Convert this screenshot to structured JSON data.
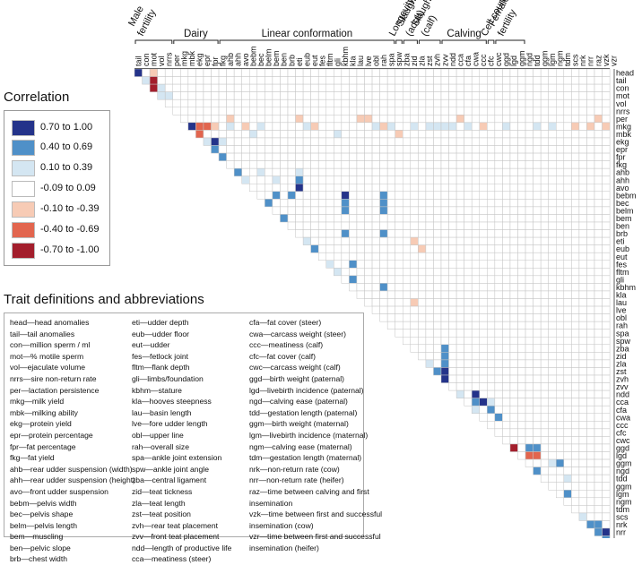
{
  "titles": {
    "correlation": "Correlation",
    "definitions": "Trait definitions and abbreviations"
  },
  "legend": [
    {
      "label": "0.70 to 1.00",
      "color": "#24338a"
    },
    {
      "label": "0.40 to 0.69",
      "color": "#4f90c8"
    },
    {
      "label": "0.10 to 0.39",
      "color": "#d4e6f2"
    },
    {
      "label": "-0.09 to 0.09",
      "color": "#ffffff"
    },
    {
      "label": "-0.10 to -0.39",
      "color": "#f7cbb5"
    },
    {
      "label": "-0.40 to -0.69",
      "color": "#e2654e"
    },
    {
      "label": "-0.70 to -1.00",
      "color": "#a31e2c"
    }
  ],
  "groups": [
    {
      "label": "Male fertility",
      "lines": [
        "Male",
        "fertility"
      ],
      "start": 1,
      "end": 5
    },
    {
      "label": "Dairy",
      "lines": [
        "Dairy"
      ],
      "start": 6,
      "end": 11
    },
    {
      "label": "Linear conformation",
      "lines": [
        "Linear conformation"
      ],
      "start": 12,
      "end": 34
    },
    {
      "label": "Longevity",
      "lines": [
        "Longevity"
      ],
      "start": 35,
      "end": 35
    },
    {
      "label": "Slaughter (adult)",
      "lines": [
        "Slaughter",
        "(adult)"
      ],
      "start": 36,
      "end": 37
    },
    {
      "label": "Slaughter (calf)",
      "lines": [
        "Slaughter",
        "(calf)"
      ],
      "start": 38,
      "end": 40
    },
    {
      "label": "Calving",
      "lines": [
        "Calving"
      ],
      "start": 41,
      "end": 46
    },
    {
      "label": "Cell count",
      "lines": [
        "Cell count"
      ],
      "start": 47,
      "end": 47
    },
    {
      "label": "Female fertility",
      "lines": [
        "Female",
        "fertility"
      ],
      "start": 48,
      "end": 51
    }
  ],
  "traits": [
    "head",
    "tail",
    "con",
    "mot",
    "vol",
    "nrrs",
    "per",
    "mkg",
    "mbk",
    "ekg",
    "epr",
    "fpr",
    "fkg",
    "ahb",
    "ahh",
    "avo",
    "bebm",
    "bec",
    "belm",
    "bem",
    "ben",
    "brb",
    "eti",
    "eub",
    "eut",
    "fes",
    "fltm",
    "gli",
    "kbhm",
    "kla",
    "lau",
    "lve",
    "obl",
    "rah",
    "spa",
    "spw",
    "zba",
    "zid",
    "zla",
    "zst",
    "zvh",
    "zvv",
    "ndd",
    "cca",
    "cfa",
    "cwa",
    "ccc",
    "cfc",
    "cwc",
    "ggd",
    "lgd",
    "ggm",
    "ngd",
    "tdd",
    "ggm",
    "lgm",
    "ngm",
    "tdm",
    "scs",
    "nrk",
    "nrr",
    "raz",
    "vzk"
  ],
  "chart_data": {
    "type": "heatmap",
    "title": "Correlation",
    "layout": "lower-triangle",
    "value_scale": [
      -1,
      1
    ],
    "categories": [
      "head",
      "tail",
      "con",
      "mot",
      "vol",
      "nrrs",
      "per",
      "mkg",
      "mbk",
      "ekg",
      "epr",
      "fpr",
      "fkg",
      "ahb",
      "ahh",
      "avo",
      "bebm",
      "bec",
      "belm",
      "bem",
      "ben",
      "brb",
      "eti",
      "eub",
      "eut",
      "fes",
      "fltm",
      "gli",
      "kbhm",
      "kla",
      "lau",
      "lve",
      "obl",
      "rah",
      "spa",
      "spw",
      "zba",
      "zid",
      "zla",
      "zst",
      "zvh",
      "zvv",
      "ndd",
      "cca",
      "cfa",
      "cwa",
      "ccc",
      "cfc",
      "cwc",
      "ggd",
      "lgd",
      "ggm",
      "ngd",
      "tdd",
      "ggm",
      "lgm",
      "ngm",
      "tdm",
      "scs",
      "nrk",
      "nrr",
      "raz",
      "vzk"
    ],
    "cells": [
      {
        "row": "head",
        "col": "tail",
        "value": 0.8
      },
      {
        "row": "tail",
        "col": "mot",
        "value": -0.8
      },
      {
        "row": "con",
        "col": "mot",
        "value": -0.8
      },
      {
        "row": "head",
        "col": "mot",
        "value": -0.2
      },
      {
        "row": "tail",
        "col": "con",
        "value": 0.2
      },
      {
        "row": "con",
        "col": "vol",
        "value": 0.2
      },
      {
        "row": "mot",
        "col": "vol",
        "value": 0.2
      },
      {
        "row": "mot",
        "col": "nrrs",
        "value": 0.2
      },
      {
        "row": "mkg",
        "col": "mbk",
        "value": 0.8
      },
      {
        "row": "mkg",
        "col": "ekg",
        "value": -0.5
      },
      {
        "row": "mkg",
        "col": "epr",
        "value": -0.5
      },
      {
        "row": "mkg",
        "col": "fpr",
        "value": -0.2
      },
      {
        "row": "mbk",
        "col": "ekg",
        "value": -0.5
      },
      {
        "row": "ekg",
        "col": "epr",
        "value": 0.2
      },
      {
        "row": "ekg",
        "col": "fpr",
        "value": 0.8
      },
      {
        "row": "epr",
        "col": "fpr",
        "value": 0.5
      },
      {
        "row": "fpr",
        "col": "fkg",
        "value": 0.5
      },
      {
        "row": "ekg",
        "col": "fkg",
        "value": 0.2
      },
      {
        "row": "per",
        "col": "ahb",
        "value": -0.2
      },
      {
        "row": "mkg",
        "col": "ahb",
        "value": 0.2
      },
      {
        "row": "mkg",
        "col": "avo",
        "value": -0.2
      },
      {
        "row": "mbk",
        "col": "bebm",
        "value": 0.2
      },
      {
        "row": "mkg",
        "col": "bec",
        "value": 0.2
      },
      {
        "row": "per",
        "col": "eti",
        "value": -0.2
      },
      {
        "row": "mkg",
        "col": "eub",
        "value": 0.2
      },
      {
        "row": "mkg",
        "col": "eut",
        "value": -0.2
      },
      {
        "row": "mbk",
        "col": "gli",
        "value": 0.2
      },
      {
        "row": "per",
        "col": "lau",
        "value": -0.2
      },
      {
        "row": "per",
        "col": "lve",
        "value": -0.2
      },
      {
        "row": "mkg",
        "col": "obl",
        "value": 0.2
      },
      {
        "row": "mkg",
        "col": "rah",
        "value": -0.2
      },
      {
        "row": "mkg",
        "col": "spa",
        "value": 0.2
      },
      {
        "row": "mbk",
        "col": "spw",
        "value": -0.2
      },
      {
        "row": "mkg",
        "col": "zid",
        "value": 0.2
      },
      {
        "row": "mkg",
        "col": "zst",
        "value": 0.2
      },
      {
        "row": "mkg",
        "col": "zvh",
        "value": 0.2
      },
      {
        "row": "mkg",
        "col": "zvv",
        "value": 0.2
      },
      {
        "row": "mkg",
        "col": "ndd",
        "value": 0.2
      },
      {
        "row": "per",
        "col": "cca",
        "value": -0.2
      },
      {
        "row": "mkg",
        "col": "cfa",
        "value": 0.2
      },
      {
        "row": "mkg",
        "col": "ccc",
        "value": -0.2
      },
      {
        "row": "mkg",
        "col": "ggd",
        "value": 0.2
      },
      {
        "row": "mkg",
        "col": "tdd",
        "value": 0.2
      },
      {
        "row": "mkg",
        "col": "lgm",
        "value": 0.2
      },
      {
        "row": "mkg",
        "col": "scs",
        "value": -0.2
      },
      {
        "row": "mkg",
        "col": "nrr",
        "value": -0.2
      },
      {
        "row": "per",
        "col": "raz",
        "value": -0.2
      },
      {
        "row": "mkg",
        "col": "vzk",
        "value": -0.2
      },
      {
        "row": "ahb",
        "col": "ahh",
        "value": 0.5
      },
      {
        "row": "ahh",
        "col": "avo",
        "value": 0.2
      },
      {
        "row": "ahb",
        "col": "bec",
        "value": 0.2
      },
      {
        "row": "bebm",
        "col": "bem",
        "value": 0.5
      },
      {
        "row": "ahh",
        "col": "bem",
        "value": 0.2
      },
      {
        "row": "bec",
        "col": "belm",
        "value": 0.5
      },
      {
        "row": "bem",
        "col": "ben",
        "value": 0.5
      },
      {
        "row": "bebm",
        "col": "brb",
        "value": 0.5
      },
      {
        "row": "ahb",
        "col": "eti",
        "value": 0.2
      },
      {
        "row": "avo",
        "col": "eti",
        "value": 0.8
      },
      {
        "row": "ahh",
        "col": "eti",
        "value": 0.5
      },
      {
        "row": "eti",
        "col": "eub",
        "value": 0.2
      },
      {
        "row": "eub",
        "col": "eut",
        "value": 0.5
      },
      {
        "row": "bebm",
        "col": "kbhm",
        "value": 0.8
      },
      {
        "row": "belm",
        "col": "kbhm",
        "value": 0.5
      },
      {
        "row": "bec",
        "col": "kbhm",
        "value": 0.5
      },
      {
        "row": "brb",
        "col": "kbhm",
        "value": 0.5
      },
      {
        "row": "fes",
        "col": "fltm",
        "value": 0.2
      },
      {
        "row": "fltm",
        "col": "gli",
        "value": 0.2
      },
      {
        "row": "gli",
        "col": "kla",
        "value": 0.5
      },
      {
        "row": "fes",
        "col": "kla",
        "value": 0.5
      },
      {
        "row": "bebm",
        "col": "rah",
        "value": 0.5
      },
      {
        "row": "bec",
        "col": "rah",
        "value": 0.5
      },
      {
        "row": "belm",
        "col": "rah",
        "value": 0.5
      },
      {
        "row": "kbhm",
        "col": "rah",
        "value": 0.5
      },
      {
        "row": "brb",
        "col": "rah",
        "value": 0.5
      },
      {
        "row": "lau",
        "col": "zid",
        "value": -0.2
      },
      {
        "row": "eti",
        "col": "zid",
        "value": -0.2
      },
      {
        "row": "eub",
        "col": "zla",
        "value": -0.2
      },
      {
        "row": "zba",
        "col": "zvv",
        "value": 0.5
      },
      {
        "row": "zid",
        "col": "zvv",
        "value": 0.5
      },
      {
        "row": "zst",
        "col": "zvv",
        "value": 0.8
      },
      {
        "row": "zvh",
        "col": "zvv",
        "value": 0.8
      },
      {
        "row": "zla",
        "col": "zvv",
        "value": 0.5
      },
      {
        "row": "zst",
        "col": "zvh",
        "value": 0.5
      },
      {
        "row": "zla",
        "col": "zst",
        "value": 0.2
      },
      {
        "row": "ndd",
        "col": "cca",
        "value": 0.2
      },
      {
        "row": "ndd",
        "col": "cwa",
        "value": 0.8
      },
      {
        "row": "cca",
        "col": "cwa",
        "value": 0.5
      },
      {
        "row": "cfa",
        "col": "cwa",
        "value": 0.2
      },
      {
        "row": "cca",
        "col": "ccc",
        "value": 0.8
      },
      {
        "row": "cfa",
        "col": "cfc",
        "value": 0.5
      },
      {
        "row": "cwa",
        "col": "cwc",
        "value": 0.5
      },
      {
        "row": "cca",
        "col": "cfc",
        "value": 0.2
      },
      {
        "row": "ggd",
        "col": "lgd",
        "value": -0.8
      },
      {
        "row": "ggd",
        "col": "ngd",
        "value": 0.5
      },
      {
        "row": "ggd",
        "col": "tdd",
        "value": 0.5
      },
      {
        "row": "lgd",
        "col": "ngd",
        "value": -0.5
      },
      {
        "row": "lgd",
        "col": "tdd",
        "value": -0.5
      },
      {
        "row": "ngd",
        "col": "tdd",
        "value": 0.5
      },
      {
        "row": "ggm",
        "col": "lgm",
        "value": 0.2
      },
      {
        "row": "ggm",
        "col": "ngm",
        "value": 0.5
      },
      {
        "row": "lgm",
        "col": "tdm",
        "value": 0.5
      },
      {
        "row": "tdd",
        "col": "tdm",
        "value": 0.2
      },
      {
        "row": "nrk",
        "col": "nrr",
        "value": 0.5
      },
      {
        "row": "nrk",
        "col": "raz",
        "value": 0.5
      },
      {
        "row": "nrr",
        "col": "raz",
        "value": 0.5
      },
      {
        "row": "nrr",
        "col": "vzk",
        "value": 0.8
      },
      {
        "row": "raz",
        "col": "vzk",
        "value": 0.5
      },
      {
        "row": "scs",
        "col": "nrk",
        "value": 0.2
      }
    ]
  },
  "definitions": {
    "col1": [
      "head—head anomalies",
      "tail—tail anomalies",
      "con—million sperm / ml",
      "mot—% motile sperm",
      "vol—ejaculate volume",
      "nrrs—sire non-return rate",
      "per—lactation persistence",
      "mkg—milk yield",
      "mbk—milking ability",
      "ekg—protein yield",
      "epr—protein percentage",
      "fpr—fat percentage",
      "fkg—fat yield",
      "ahb—rear udder suspension (width)",
      "ahh—rear udder suspension (height)",
      "avo—front udder suspension",
      "bebm—pelvis width",
      "bec—pelvis shape",
      "belm—pelvis length",
      "bem—muscling",
      "ben—pelvic slope",
      "brb—chest width"
    ],
    "col2": [
      "eti—udder depth",
      "eub—udder floor",
      "eut—udder",
      "fes—fetlock joint",
      "fltm—flank depth",
      "gli—limbs/foundation",
      "kbhm—stature",
      "kla—hooves steepness",
      "lau—basin length",
      "lve—fore udder length",
      "obl—upper line",
      "rah—overall size",
      "spa—ankle joint extension",
      "spw—ankle joint angle",
      "zba—central ligament",
      "zid—teat tickness",
      "zla—teat length",
      "zst—teat position",
      "zvh—rear teat placement",
      "zvv—front teat placement",
      "ndd—length of productive life",
      "cca—meatiness (steer)"
    ],
    "col3": [
      "cfa—fat cover (steer)",
      "cwa—carcass weight (steer)",
      "ccc—meatiness (calf)",
      "cfc—fat cover (calf)",
      "cwc—carcass weight (calf)",
      "ggd—birth weight (paternal)",
      "lgd—livebirth incidence (paternal)",
      "ngd—calving ease (paternal)",
      "tdd—gestation length (paternal)",
      "ggm—birth weight (maternal)",
      "lgm—livebirth incidence (maternal)",
      "ngm—calving ease (maternal)",
      "tdm—gestation length (maternal)",
      "nrk—non-return rate (cow)",
      "nrr—non-return rate (heifer)",
      "raz—time between calving and first insemination",
      "vzk—time between first and successful insemination (cow)",
      "vzr—time between first and successful insemination (heifer)"
    ]
  }
}
